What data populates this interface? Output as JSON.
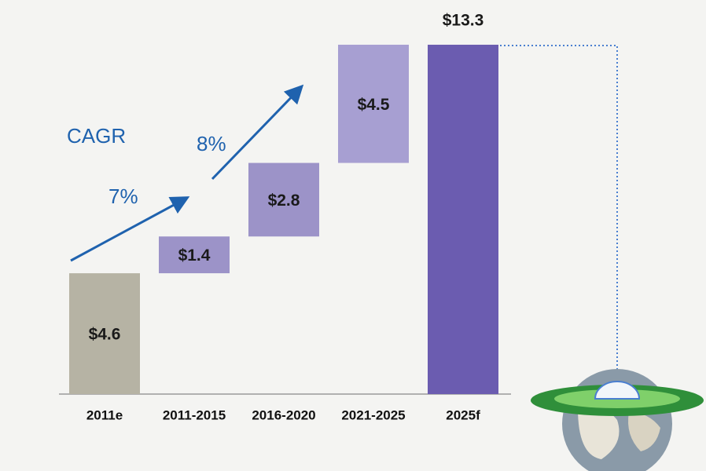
{
  "chart_data": {
    "type": "waterfall",
    "categories": [
      "2011e",
      "2011-2015",
      "2016-2020",
      "2021-2025",
      "2025f"
    ],
    "values": [
      4.6,
      1.4,
      2.8,
      4.5,
      13.3
    ],
    "value_labels": [
      "$4.6",
      "$1.4",
      "$2.8",
      "$4.5",
      "$13.3"
    ],
    "measure": [
      "absolute",
      "relative",
      "relative",
      "relative",
      "total"
    ],
    "colors": [
      "#b6b3a4",
      "#9c93c8",
      "#9c93c8",
      "#a79fd2",
      "#6b5cb0"
    ],
    "annotations": [
      "CAGR",
      "7%",
      "8%"
    ]
  }
}
